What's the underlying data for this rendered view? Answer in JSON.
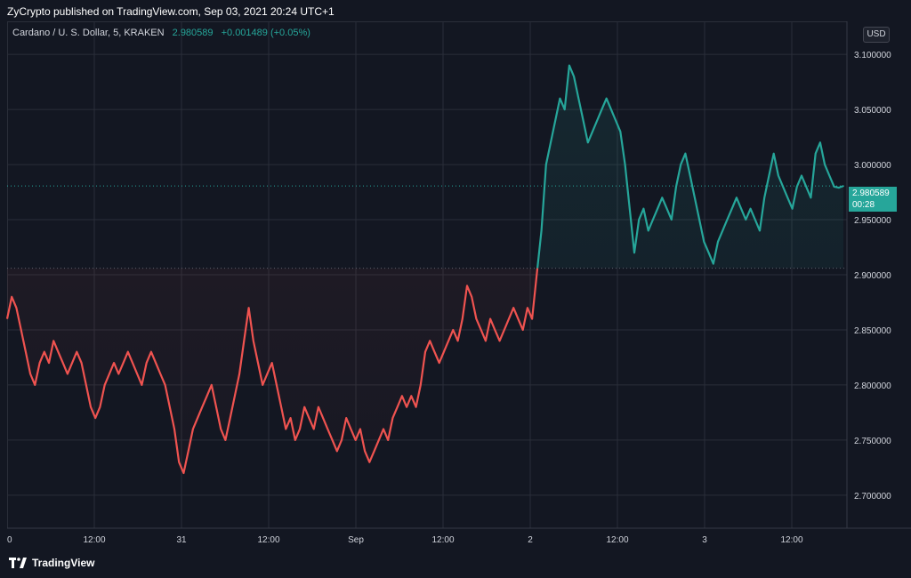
{
  "header": {
    "published_text": "ZyCrypto published on TradingView.com, Sep 03, 2021 20:24 UTC+1"
  },
  "legend": {
    "symbol": "Cardano / U. S. Dollar, 5, KRAKEN",
    "price": "2.980589",
    "change": "+0.001489 (+0.05%)"
  },
  "currency_button": "USD",
  "price_tag": {
    "price": "2.980589",
    "countdown": "00:28"
  },
  "brand": "TradingView",
  "colors": {
    "background": "#131722",
    "up": "#26a69a",
    "down": "#ef5350",
    "grid": "#2a2e39"
  },
  "chart_data": {
    "type": "line",
    "xlabel": "",
    "ylabel": "",
    "x_ticks": [
      "0",
      "12:00",
      "31",
      "12:00",
      "Sep",
      "12:00",
      "2",
      "12:00",
      "3",
      "12:00"
    ],
    "y_ticks": [
      "3.100000",
      "3.050000",
      "3.000000",
      "2.950000",
      "2.900000",
      "2.850000",
      "2.800000",
      "2.750000",
      "2.700000"
    ],
    "ylim": [
      2.67,
      3.13
    ],
    "baseline": 2.906,
    "last_price": 2.980589,
    "grid": true,
    "series": [
      {
        "values": [
          2.86,
          2.88,
          2.87,
          2.85,
          2.83,
          2.81,
          2.8,
          2.82,
          2.83,
          2.82,
          2.84,
          2.83,
          2.82,
          2.81,
          2.82,
          2.83,
          2.82,
          2.8,
          2.78,
          2.77,
          2.78,
          2.8,
          2.81,
          2.82,
          2.81,
          2.82,
          2.83,
          2.82,
          2.81,
          2.8,
          2.82,
          2.83,
          2.82,
          2.81,
          2.8,
          2.78,
          2.76,
          2.73,
          2.72,
          2.74,
          2.76,
          2.77,
          2.78,
          2.79,
          2.8,
          2.78,
          2.76,
          2.75,
          2.77,
          2.79,
          2.81,
          2.84,
          2.87,
          2.84,
          2.82,
          2.8,
          2.81,
          2.82,
          2.8,
          2.78,
          2.76,
          2.77,
          2.75,
          2.76,
          2.78,
          2.77,
          2.76,
          2.78,
          2.77,
          2.76,
          2.75,
          2.74,
          2.75,
          2.77,
          2.76,
          2.75,
          2.76,
          2.74,
          2.73,
          2.74,
          2.75,
          2.76,
          2.75,
          2.77,
          2.78,
          2.79,
          2.78,
          2.79,
          2.78,
          2.8,
          2.83,
          2.84,
          2.83,
          2.82,
          2.83,
          2.84,
          2.85,
          2.84,
          2.86,
          2.89,
          2.88,
          2.86,
          2.85,
          2.84,
          2.86,
          2.85,
          2.84,
          2.85,
          2.86,
          2.87,
          2.86,
          2.85,
          2.87,
          2.86,
          2.9,
          2.94,
          3.0,
          3.02,
          3.04,
          3.06,
          3.05,
          3.09,
          3.08,
          3.06,
          3.04,
          3.02,
          3.03,
          3.04,
          3.05,
          3.06,
          3.05,
          3.04,
          3.03,
          3.0,
          2.96,
          2.92,
          2.95,
          2.96,
          2.94,
          2.95,
          2.96,
          2.97,
          2.96,
          2.95,
          2.98,
          3.0,
          3.01,
          2.99,
          2.97,
          2.95,
          2.93,
          2.92,
          2.91,
          2.93,
          2.94,
          2.95,
          2.96,
          2.97,
          2.96,
          2.95,
          2.96,
          2.95,
          2.94,
          2.97,
          2.99,
          3.01,
          2.99,
          2.98,
          2.97,
          2.96,
          2.98,
          2.99,
          2.98,
          2.97,
          3.01,
          3.02,
          3.0,
          2.99,
          2.98,
          2.979,
          2.9806
        ]
      }
    ]
  }
}
